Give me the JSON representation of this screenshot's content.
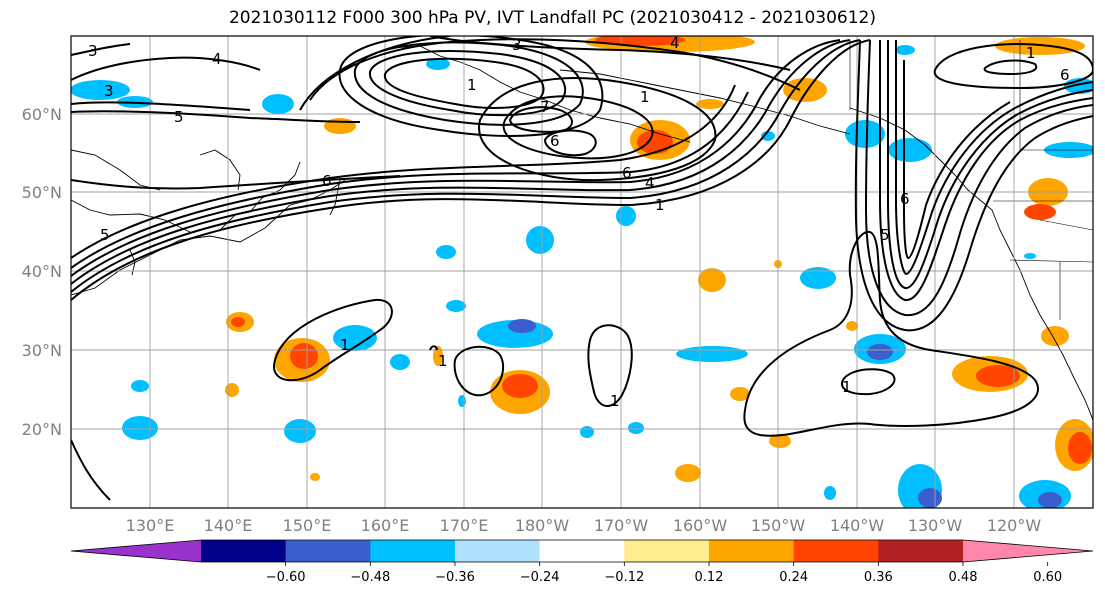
{
  "title": "2021030112 F000 300 hPa PV, IVT Landfall PC (2021030412 - 2021030612)",
  "lat_labels": [
    "60°N",
    "50°N",
    "40°N",
    "30°N",
    "20°N"
  ],
  "lon_labels": [
    "130°E",
    "140°E",
    "150°E",
    "160°E",
    "170°E",
    "180°W",
    "170°W",
    "160°W",
    "150°W",
    "140°W",
    "130°W",
    "120°W"
  ],
  "contour_labels": [
    "3",
    "4",
    "3",
    "5",
    "1",
    "7",
    "6",
    "6",
    "4",
    "1",
    "6",
    "1",
    "5",
    "6",
    "5",
    "1",
    "1",
    "1",
    "1",
    "4",
    "3",
    "1",
    "6"
  ],
  "colorbar": {
    "ticks": [
      "−0.60",
      "−0.48",
      "−0.36",
      "−0.24",
      "−0.12",
      "0.12",
      "0.24",
      "0.36",
      "0.48",
      "0.60"
    ],
    "colors": [
      "#9933cc",
      "#00008b",
      "#3a5fcd",
      "#00bfff",
      "#b0e2ff",
      "#ffffff",
      "#ffec8b",
      "#ffa500",
      "#ff4500",
      "#b22222",
      "#ff88aa"
    ]
  }
}
